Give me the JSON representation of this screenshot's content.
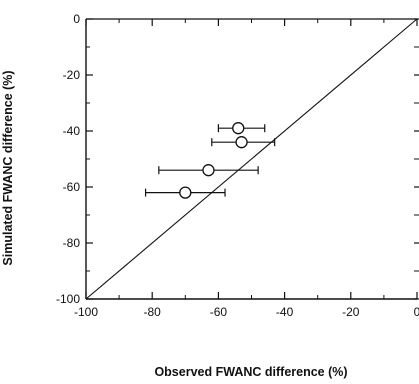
{
  "chart_data": {
    "type": "scatter",
    "title": "",
    "xlabel": "Observed FWANC difference (%)",
    "ylabel": "Simulated FWANC difference (%)",
    "xlim": [
      -100,
      0
    ],
    "ylim": [
      -100,
      0
    ],
    "x_ticks": [
      -100,
      -80,
      -60,
      -40,
      -20,
      0
    ],
    "y_ticks": [
      -100,
      -80,
      -60,
      -40,
      -20,
      0
    ],
    "x_tick_labels": [
      "-100",
      "-80",
      "-60",
      "-40",
      "-20",
      "0"
    ],
    "y_tick_labels": [
      "-100",
      "-80",
      "-60",
      "-40",
      "-20",
      "0"
    ],
    "reference_line": {
      "type": "1:1",
      "from": [
        -100,
        -100
      ],
      "to": [
        0,
        0
      ]
    },
    "grid": false,
    "legend": "none",
    "points": [
      {
        "x": -54,
        "y": -39,
        "x_err_low": -60,
        "x_err_high": -46
      },
      {
        "x": -53,
        "y": -44,
        "x_err_low": -62,
        "x_err_high": -43
      },
      {
        "x": -63,
        "y": -54,
        "x_err_low": -78,
        "x_err_high": -48
      },
      {
        "x": -70,
        "y": -62,
        "x_err_low": -82,
        "x_err_high": -58
      }
    ],
    "colors": {
      "axis": "#111111",
      "marker_fill": "#ffffff",
      "marker_stroke": "#111111"
    }
  }
}
